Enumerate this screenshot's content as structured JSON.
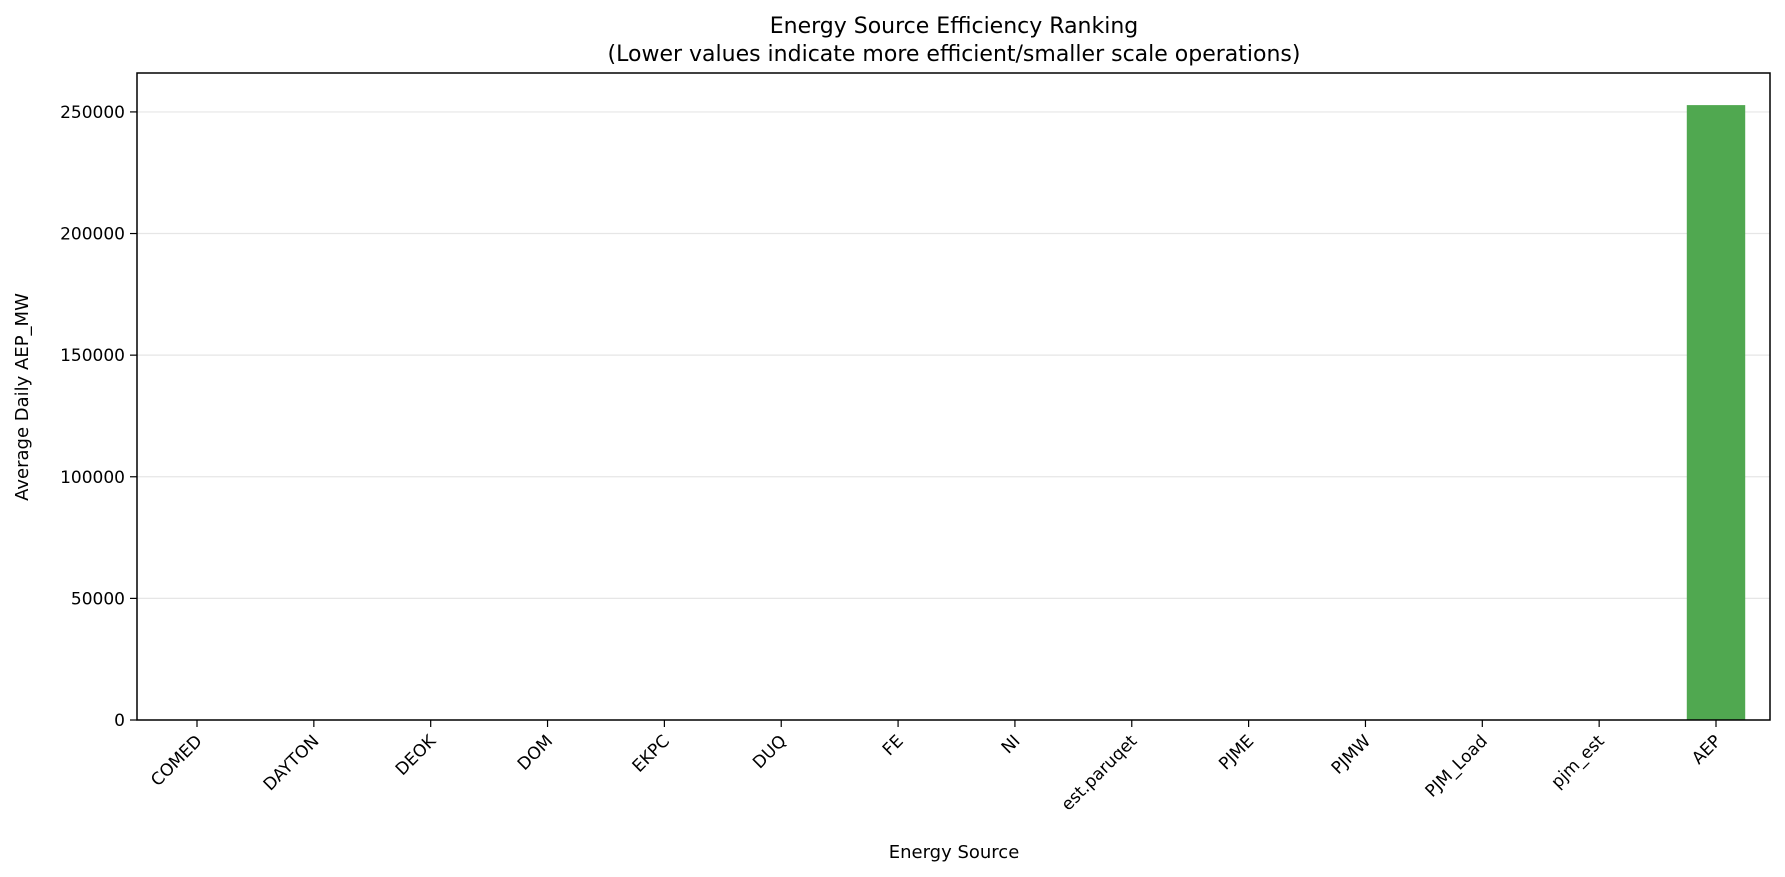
{
  "chart_data": {
    "type": "bar",
    "title": "Energy Source Efficiency Ranking",
    "subtitle": "(Lower values indicate more efficient/smaller scale operations)",
    "xlabel": "Energy Source",
    "ylabel": "Average Daily AEP_MW",
    "categories": [
      "COMED",
      "DAYTON",
      "DEOK",
      "DOM",
      "EKPC",
      "DUQ",
      "FE",
      "NI",
      "est.paruqet",
      "PJME",
      "PJMW",
      "PJM_Load",
      "pjm_est",
      "AEP"
    ],
    "values": [
      0,
      0,
      0,
      0,
      0,
      0,
      0,
      0,
      0,
      0,
      0,
      0,
      0,
      252800
    ],
    "ylim": [
      0,
      266000
    ],
    "yticks": [
      0,
      50000,
      100000,
      150000,
      200000,
      250000
    ],
    "ytick_labels": [
      "0",
      "50000",
      "100000",
      "150000",
      "200000",
      "250000"
    ],
    "grid": "y",
    "colors": {
      "bar": "#4ca64c",
      "grid": "#e6e6e6",
      "axis": "#000000"
    }
  }
}
